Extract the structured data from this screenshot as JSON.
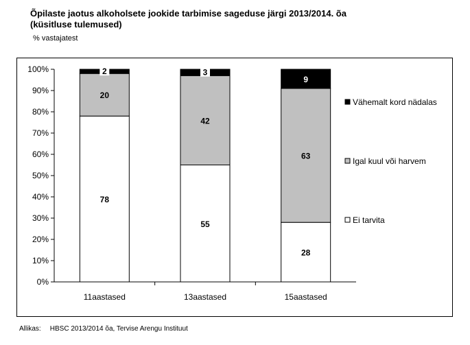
{
  "header": {
    "title_line1": "Õpilaste jaotus alkoholsete jookide tarbimise sageduse järgi 2013/2014. õa",
    "title_line2": "(küsitluse tulemused)",
    "unit": "% vastajatest"
  },
  "footer": {
    "source_label": "Allikas:",
    "source_text": "HBSC 2013/2014 õa, Tervise Arengu Instituut"
  },
  "chart_data": {
    "type": "bar",
    "stacked": true,
    "percent": true,
    "categories": [
      "11aastased",
      "13aastased",
      "15aastased"
    ],
    "series": [
      {
        "name": "Ei tarvita",
        "values": [
          78,
          55,
          28
        ],
        "color": "#ffffff"
      },
      {
        "name": "Igal kuul või harvem",
        "values": [
          20,
          42,
          63
        ],
        "color": "#c0c0c0"
      },
      {
        "name": "Vähemalt kord nädalas",
        "values": [
          2,
          3,
          9
        ],
        "color": "#000000"
      }
    ],
    "y_ticks": [
      "0%",
      "10%",
      "20%",
      "30%",
      "40%",
      "50%",
      "60%",
      "70%",
      "80%",
      "90%",
      "100%"
    ],
    "ylim": [
      0,
      100
    ],
    "legend_position": "right",
    "legend_order": [
      "Vähemalt kord nädalas",
      "Igal kuul või harvem",
      "Ei tarvita"
    ],
    "grid": false
  }
}
